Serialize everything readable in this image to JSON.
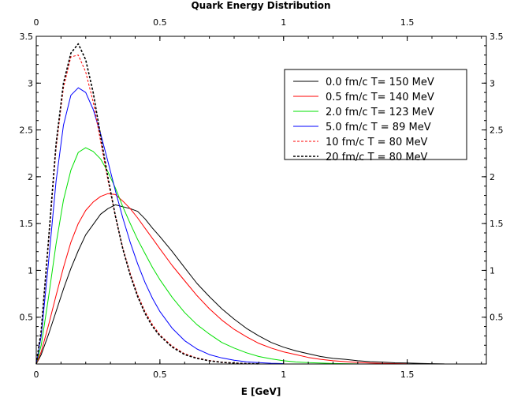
{
  "chart_data": {
    "type": "line",
    "title": "Quark Energy Distribution",
    "xlabel": "E [GeV]",
    "ylabel": "",
    "xlim": [
      0,
      1.82
    ],
    "ylim": [
      0,
      3.5
    ],
    "x_ticks": [
      0,
      0.5,
      1,
      1.5
    ],
    "x_tick_labels": [
      "0",
      "0.5",
      "1",
      "1.5"
    ],
    "y_ticks": [
      0.5,
      1,
      1.5,
      2,
      2.5,
      3,
      3.5
    ],
    "y_tick_labels": [
      "0.5",
      "1",
      "1.5",
      "2",
      "2.5",
      "3",
      "3.5"
    ],
    "grid": false,
    "legend_position": "top-right",
    "series": [
      {
        "name": "0.0 fm/c   T= 150 MeV",
        "color": "#000000",
        "dash": "solid",
        "x": [
          0,
          0.02,
          0.05,
          0.08,
          0.11,
          0.14,
          0.17,
          0.2,
          0.23,
          0.26,
          0.29,
          0.32,
          0.35,
          0.38,
          0.41,
          0.44,
          0.47,
          0.5,
          0.55,
          0.6,
          0.65,
          0.7,
          0.75,
          0.8,
          0.85,
          0.9,
          0.95,
          1.0,
          1.05,
          1.1,
          1.15,
          1.2,
          1.25,
          1.3,
          1.35,
          1.4,
          1.45,
          1.5,
          1.55,
          1.6,
          1.65
        ],
        "values": [
          0,
          0.1,
          0.32,
          0.56,
          0.8,
          1.02,
          1.21,
          1.38,
          1.49,
          1.6,
          1.66,
          1.7,
          1.68,
          1.66,
          1.63,
          1.55,
          1.45,
          1.36,
          1.2,
          1.03,
          0.86,
          0.72,
          0.59,
          0.48,
          0.38,
          0.3,
          0.23,
          0.18,
          0.14,
          0.11,
          0.08,
          0.06,
          0.05,
          0.035,
          0.025,
          0.02,
          0.013,
          0.01,
          0.006,
          0.003,
          0.001
        ]
      },
      {
        "name": "0.5 fm/c   T= 140 MeV",
        "color": "#ff0000",
        "dash": "solid",
        "x": [
          0,
          0.02,
          0.05,
          0.08,
          0.11,
          0.14,
          0.17,
          0.2,
          0.23,
          0.26,
          0.29,
          0.32,
          0.35,
          0.38,
          0.41,
          0.44,
          0.47,
          0.5,
          0.55,
          0.6,
          0.65,
          0.7,
          0.75,
          0.8,
          0.85,
          0.9,
          0.95,
          1.0,
          1.05,
          1.1,
          1.15,
          1.2,
          1.25,
          1.3,
          1.35,
          1.4,
          1.5
        ],
        "values": [
          0,
          0.13,
          0.42,
          0.73,
          1.03,
          1.3,
          1.5,
          1.64,
          1.73,
          1.79,
          1.82,
          1.81,
          1.74,
          1.66,
          1.56,
          1.45,
          1.34,
          1.23,
          1.05,
          0.89,
          0.73,
          0.59,
          0.47,
          0.37,
          0.29,
          0.22,
          0.17,
          0.13,
          0.1,
          0.07,
          0.05,
          0.035,
          0.025,
          0.017,
          0.011,
          0.007,
          0.002
        ]
      },
      {
        "name": "2.0 fm/c   T= 123 MeV",
        "color": "#00e000",
        "dash": "solid",
        "x": [
          0,
          0.02,
          0.05,
          0.08,
          0.11,
          0.14,
          0.17,
          0.2,
          0.23,
          0.26,
          0.29,
          0.32,
          0.35,
          0.38,
          0.41,
          0.44,
          0.47,
          0.5,
          0.55,
          0.6,
          0.65,
          0.7,
          0.75,
          0.8,
          0.85,
          0.9,
          0.95,
          1.0,
          1.05,
          1.1,
          1.2,
          1.3
        ],
        "values": [
          0,
          0.2,
          0.72,
          1.28,
          1.75,
          2.07,
          2.26,
          2.31,
          2.27,
          2.19,
          2.05,
          1.88,
          1.68,
          1.5,
          1.33,
          1.18,
          1.03,
          0.9,
          0.71,
          0.55,
          0.42,
          0.32,
          0.23,
          0.17,
          0.12,
          0.08,
          0.055,
          0.035,
          0.022,
          0.014,
          0.005,
          0.001
        ]
      },
      {
        "name": "5.0 fm/c   T = 89 MeV",
        "color": "#0000ff",
        "dash": "solid",
        "x": [
          0,
          0.02,
          0.05,
          0.08,
          0.11,
          0.14,
          0.17,
          0.2,
          0.23,
          0.26,
          0.29,
          0.32,
          0.35,
          0.38,
          0.41,
          0.44,
          0.47,
          0.5,
          0.55,
          0.6,
          0.65,
          0.7,
          0.75,
          0.8,
          0.85,
          0.9,
          0.95,
          1.0
        ],
        "values": [
          0,
          0.3,
          1.1,
          1.95,
          2.55,
          2.87,
          2.95,
          2.9,
          2.72,
          2.46,
          2.16,
          1.85,
          1.56,
          1.3,
          1.07,
          0.87,
          0.7,
          0.56,
          0.38,
          0.25,
          0.16,
          0.1,
          0.065,
          0.04,
          0.024,
          0.014,
          0.008,
          0.004
        ]
      },
      {
        "name": "10 fm/c     T = 80 MeV",
        "color": "#ff0000",
        "dash": "dashed",
        "x": [
          0,
          0.02,
          0.05,
          0.08,
          0.11,
          0.14,
          0.17,
          0.2,
          0.23,
          0.26,
          0.29,
          0.32,
          0.35,
          0.38,
          0.41,
          0.44,
          0.47,
          0.5,
          0.55,
          0.6,
          0.65,
          0.7,
          0.75,
          0.8,
          0.85,
          0.9
        ],
        "values": [
          0,
          0.35,
          1.3,
          2.3,
          2.95,
          3.28,
          3.3,
          3.12,
          2.8,
          2.38,
          1.96,
          1.58,
          1.24,
          0.97,
          0.74,
          0.56,
          0.42,
          0.31,
          0.19,
          0.11,
          0.065,
          0.037,
          0.02,
          0.011,
          0.005,
          0.002
        ]
      },
      {
        "name": "20 fm/c     T = 80 MeV",
        "color": "#000000",
        "dash": "dashed",
        "x": [
          0,
          0.02,
          0.05,
          0.08,
          0.11,
          0.14,
          0.17,
          0.2,
          0.23,
          0.26,
          0.29,
          0.32,
          0.35,
          0.38,
          0.41,
          0.44,
          0.47,
          0.5,
          0.55,
          0.6,
          0.65,
          0.7,
          0.75,
          0.8,
          0.85,
          0.9
        ],
        "values": [
          0,
          0.36,
          1.34,
          2.35,
          3.0,
          3.32,
          3.42,
          3.25,
          2.9,
          2.44,
          1.99,
          1.58,
          1.23,
          0.95,
          0.72,
          0.54,
          0.4,
          0.3,
          0.18,
          0.1,
          0.06,
          0.034,
          0.018,
          0.009,
          0.004,
          0.002
        ]
      }
    ]
  }
}
